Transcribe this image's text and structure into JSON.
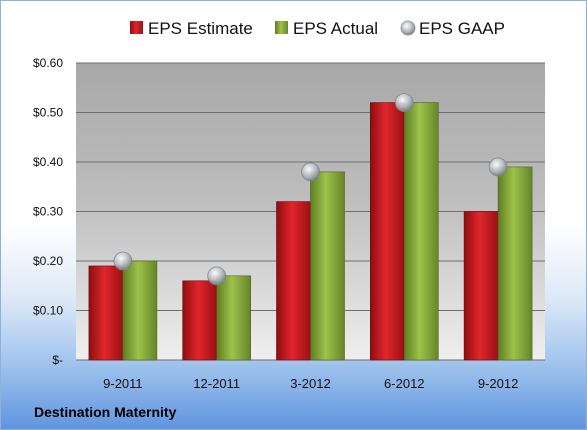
{
  "colors": {
    "estimate": "#c8161c",
    "actual": "#8cb03a",
    "gaap": "#b8bcc4"
  },
  "chart_data": {
    "type": "bar",
    "categories": [
      "9-2011",
      "12-2011",
      "3-2012",
      "6-2012",
      "9-2012"
    ],
    "series": [
      {
        "name": "EPS Estimate",
        "values": [
          0.19,
          0.16,
          0.32,
          0.52,
          0.3
        ]
      },
      {
        "name": "EPS Actual",
        "values": [
          0.2,
          0.17,
          0.38,
          0.52,
          0.39
        ]
      },
      {
        "name": "EPS GAAP",
        "type": "scatter",
        "values": [
          0.2,
          0.17,
          0.38,
          0.52,
          0.39
        ]
      }
    ],
    "ylim": [
      0,
      0.6
    ],
    "yticks": [
      0,
      0.1,
      0.2,
      0.3,
      0.4,
      0.5,
      0.6
    ],
    "ytick_labels": [
      "$-",
      "$0.10",
      "$0.20",
      "$0.30",
      "$0.40",
      "$0.50",
      "$0.60"
    ],
    "legend_position": "top",
    "grid": true
  },
  "footer": {
    "company": "Destination Maternity"
  }
}
